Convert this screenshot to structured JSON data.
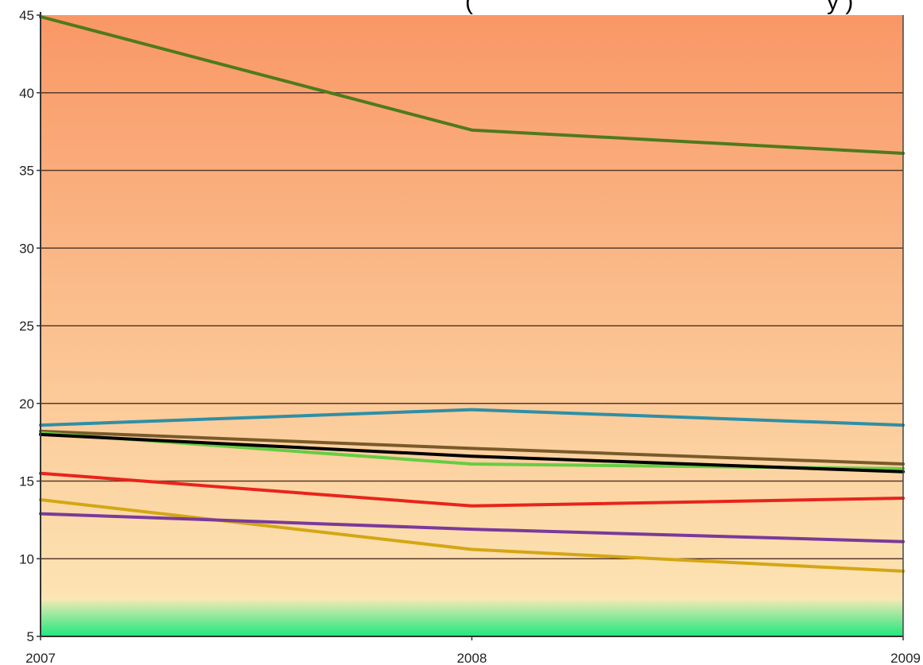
{
  "chart_data": {
    "type": "line",
    "title": "",
    "title_fragment": "(",
    "title_fragment_end": "y   )",
    "xlabel": "",
    "ylabel": "",
    "x": [
      "2007",
      "2008",
      "2009"
    ],
    "ylim": [
      5,
      45
    ],
    "yticks": [
      5,
      10,
      15,
      20,
      25,
      30,
      35,
      40,
      45
    ],
    "grid": true,
    "legend": "none",
    "background": {
      "gradient_top_color": "#f99766",
      "gradient_bottom_color": "#fde9b8",
      "green_band_color": "#1ee87e",
      "green_band_range": [
        5,
        7.5
      ]
    },
    "series": [
      {
        "color": "#4f7a1c",
        "values": [
          44.9,
          37.6,
          36.1
        ]
      },
      {
        "color": "#2e8fa6",
        "values": [
          18.6,
          19.6,
          18.6
        ]
      },
      {
        "color": "#7a5a2a",
        "values": [
          18.2,
          17.1,
          16.1
        ]
      },
      {
        "color": "#66cc44",
        "values": [
          18.1,
          16.1,
          15.8
        ]
      },
      {
        "color": "#000000",
        "values": [
          18.0,
          16.6,
          15.6
        ]
      },
      {
        "color": "#e8241c",
        "values": [
          15.5,
          13.4,
          13.9
        ]
      },
      {
        "color": "#d4a614",
        "values": [
          13.8,
          10.6,
          9.2
        ]
      },
      {
        "color": "#7a3a9a",
        "values": [
          12.9,
          11.9,
          11.1
        ]
      }
    ]
  }
}
